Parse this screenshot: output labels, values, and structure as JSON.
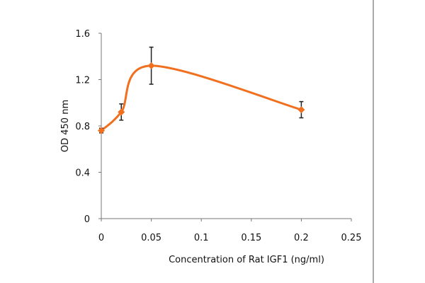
{
  "chart_data": {
    "type": "line",
    "title": "",
    "xlabel": "Concentration of Rat IGF1 (ng/ml)",
    "ylabel": "OD 450 nm",
    "xlim": [
      0,
      0.25
    ],
    "ylim": [
      0,
      1.6
    ],
    "xticks": [
      "0",
      "0.05",
      "0.1",
      "0.15",
      "0.2",
      "0.25"
    ],
    "xtick_values": [
      0,
      0.05,
      0.1,
      0.15,
      0.2,
      0.25
    ],
    "yticks": [
      "0",
      "0.4",
      "0.8",
      "1.2",
      "1.6"
    ],
    "ytick_values": [
      0,
      0.4,
      0.8,
      1.2,
      1.6
    ],
    "grid": false,
    "series": [
      {
        "name": "OD 450 nm",
        "color": "#f07020",
        "smooth": true,
        "x": [
          0,
          0.02,
          0.05,
          0.2
        ],
        "y": [
          0.76,
          0.92,
          1.32,
          0.94
        ],
        "error": [
          0.02,
          0.07,
          0.16,
          0.07
        ]
      }
    ]
  }
}
